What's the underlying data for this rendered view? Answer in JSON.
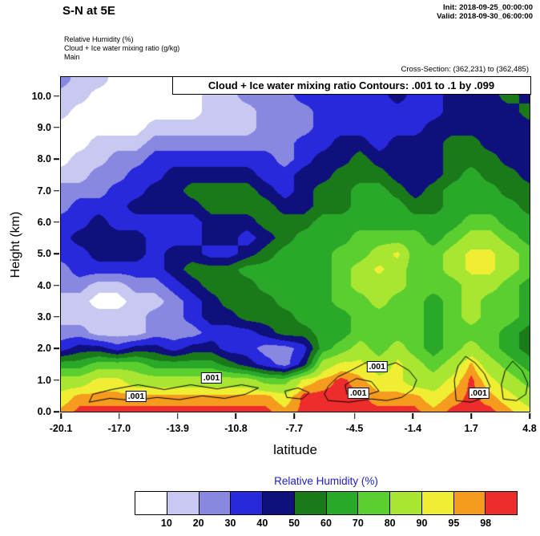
{
  "header": {
    "title": "S-N at 5E",
    "init": "Init: 2018-09-25_00:00:00",
    "valid": "Valid: 2018-09-30_06:00:00",
    "legend_lines": [
      "Relative Humidity  (%)",
      "Cloud + Ice water mixing ratio  (g/kg)",
      "Main"
    ],
    "cross_section": "Cross-Section: (362,231) to (362,485)"
  },
  "chart_data": {
    "type": "heatmap",
    "title": "Cloud + Ice water mixing ratio Contours: .001 to .1 by .099",
    "xlabel": "latitude",
    "ylabel": "Height (km)",
    "xlim": [
      -20.1,
      4.8
    ],
    "ylim": [
      0,
      10.6
    ],
    "x_ticks": [
      -20.1,
      -17.0,
      -13.9,
      -10.8,
      -7.7,
      -4.5,
      -1.4,
      1.7,
      4.8
    ],
    "x_tick_labels": [
      "-20.1",
      "-17.0",
      "-13.9",
      "-10.8",
      "-7.7",
      "-4.5",
      "-1.4",
      "1.7",
      "4.8"
    ],
    "y_ticks": [
      0,
      1,
      2,
      3,
      4,
      5,
      6,
      7,
      8,
      9,
      10
    ],
    "y_tick_labels": [
      "0.0",
      "1.0",
      "2.0",
      "3.0",
      "4.0",
      "5.0",
      "6.0",
      "7.0",
      "8.0",
      "9.0",
      "10.0"
    ],
    "rh_levels": [
      10,
      20,
      30,
      40,
      50,
      60,
      70,
      80,
      90,
      95,
      98
    ],
    "rh_colors": [
      "#ffffff",
      "#c8c8f0",
      "#8888e0",
      "#2828dc",
      "#10107d",
      "#1a7a1a",
      "#2aa82a",
      "#5ccf30",
      "#a8e632",
      "#f0ee33",
      "#f59b1e",
      "#ee2c2c"
    ],
    "grid": {
      "lats": [
        -20.1,
        -19.1,
        -18.1,
        -17.1,
        -16.1,
        -15.1,
        -14.1,
        -13.1,
        -12.1,
        -11.2,
        -10.2,
        -9.2,
        -8.2,
        -7.2,
        -6.2,
        -5.2,
        -4.2,
        -3.2,
        -2.2,
        -1.3,
        -0.3,
        0.7,
        1.7,
        2.7,
        3.7,
        4.8
      ],
      "heights_km": [
        0,
        0.5,
        1,
        1.5,
        2,
        2.5,
        3,
        3.5,
        4,
        4.5,
        5,
        5.5,
        6,
        6.5,
        7,
        7.5,
        8,
        8.5,
        9,
        9.5,
        10,
        10.5
      ],
      "rh_values": [
        [
          96,
          99,
          99,
          99,
          99,
          99,
          99,
          99,
          99,
          99,
          99,
          99,
          96,
          99,
          99,
          99,
          99,
          99,
          99,
          99,
          96,
          99,
          99,
          99,
          96,
          92
        ],
        [
          92,
          96,
          96,
          96,
          96,
          96,
          96,
          96,
          96,
          96,
          96,
          96,
          92,
          99,
          99,
          99,
          99,
          96,
          96,
          96,
          92,
          96,
          99,
          96,
          92,
          85
        ],
        [
          85,
          85,
          92,
          92,
          85,
          85,
          85,
          85,
          85,
          85,
          85,
          75,
          75,
          92,
          96,
          99,
          96,
          92,
          92,
          85,
          85,
          92,
          99,
          92,
          85,
          75
        ],
        [
          65,
          65,
          75,
          75,
          75,
          65,
          65,
          65,
          65,
          55,
          45,
          35,
          25,
          45,
          85,
          92,
          92,
          85,
          92,
          85,
          75,
          85,
          96,
          85,
          75,
          65
        ],
        [
          35,
          45,
          45,
          35,
          45,
          45,
          35,
          45,
          45,
          35,
          35,
          25,
          25,
          35,
          65,
          75,
          85,
          75,
          85,
          75,
          65,
          75,
          85,
          75,
          65,
          55
        ],
        [
          25,
          25,
          15,
          15,
          15,
          25,
          25,
          25,
          35,
          35,
          35,
          45,
          55,
          55,
          65,
          65,
          75,
          75,
          75,
          75,
          65,
          75,
          75,
          75,
          65,
          55
        ],
        [
          15,
          15,
          15,
          15,
          15,
          25,
          25,
          35,
          45,
          45,
          55,
          55,
          55,
          65,
          65,
          65,
          75,
          75,
          75,
          75,
          65,
          75,
          85,
          75,
          75,
          65
        ],
        [
          15,
          15,
          5,
          5,
          15,
          15,
          25,
          35,
          45,
          55,
          55,
          55,
          65,
          65,
          65,
          75,
          75,
          85,
          75,
          75,
          65,
          75,
          85,
          75,
          75,
          65
        ],
        [
          25,
          25,
          15,
          15,
          25,
          25,
          35,
          45,
          55,
          55,
          55,
          65,
          65,
          65,
          65,
          75,
          85,
          85,
          85,
          75,
          75,
          75,
          85,
          85,
          75,
          65
        ],
        [
          25,
          35,
          35,
          35,
          35,
          35,
          45,
          55,
          55,
          55,
          65,
          65,
          65,
          65,
          65,
          75,
          85,
          92,
          85,
          75,
          75,
          85,
          92,
          92,
          85,
          75
        ],
        [
          35,
          35,
          45,
          45,
          45,
          35,
          45,
          45,
          35,
          35,
          45,
          55,
          65,
          65,
          65,
          75,
          75,
          85,
          92,
          75,
          75,
          85,
          92,
          92,
          85,
          75
        ],
        [
          35,
          45,
          45,
          45,
          45,
          35,
          35,
          35,
          45,
          45,
          35,
          45,
          55,
          65,
          65,
          65,
          75,
          75,
          75,
          75,
          65,
          75,
          85,
          85,
          75,
          65
        ],
        [
          35,
          35,
          45,
          35,
          35,
          35,
          35,
          35,
          45,
          45,
          45,
          55,
          55,
          55,
          65,
          65,
          65,
          65,
          65,
          65,
          65,
          65,
          75,
          75,
          65,
          65
        ],
        [
          25,
          35,
          35,
          35,
          45,
          45,
          45,
          45,
          55,
          55,
          55,
          55,
          45,
          45,
          55,
          55,
          65,
          65,
          65,
          55,
          55,
          65,
          65,
          65,
          65,
          55
        ],
        [
          25,
          25,
          25,
          35,
          35,
          45,
          45,
          55,
          55,
          55,
          55,
          45,
          35,
          45,
          55,
          55,
          65,
          65,
          55,
          45,
          55,
          65,
          65,
          65,
          55,
          55
        ],
        [
          15,
          15,
          25,
          25,
          35,
          35,
          45,
          45,
          45,
          45,
          45,
          35,
          35,
          45,
          45,
          55,
          55,
          55,
          45,
          45,
          45,
          55,
          65,
          55,
          55,
          45
        ],
        [
          5,
          15,
          15,
          25,
          25,
          35,
          35,
          35,
          35,
          35,
          35,
          35,
          25,
          35,
          45,
          45,
          55,
          45,
          45,
          45,
          45,
          55,
          55,
          55,
          45,
          45
        ],
        [
          5,
          5,
          15,
          15,
          15,
          25,
          25,
          25,
          25,
          25,
          25,
          25,
          25,
          35,
          35,
          45,
          45,
          35,
          45,
          45,
          45,
          55,
          55,
          45,
          45,
          45
        ],
        [
          5,
          5,
          5,
          5,
          5,
          15,
          15,
          15,
          15,
          15,
          15,
          25,
          25,
          25,
          35,
          35,
          35,
          35,
          35,
          35,
          45,
          45,
          45,
          45,
          45,
          45
        ],
        [
          15,
          5,
          5,
          5,
          5,
          5,
          5,
          5,
          15,
          15,
          15,
          25,
          25,
          25,
          35,
          35,
          35,
          35,
          35,
          35,
          35,
          45,
          45,
          45,
          45,
          55
        ],
        [
          15,
          15,
          5,
          5,
          5,
          5,
          5,
          5,
          15,
          15,
          25,
          25,
          25,
          35,
          35,
          35,
          35,
          35,
          45,
          35,
          35,
          45,
          45,
          45,
          55,
          45
        ],
        [
          25,
          15,
          15,
          5,
          5,
          5,
          5,
          15,
          15,
          25,
          25,
          25,
          35,
          35,
          35,
          35,
          35,
          45,
          45,
          45,
          35,
          45,
          45,
          55,
          45,
          45
        ]
      ]
    },
    "cloud_contours": {
      "level_label": ".001",
      "contour_range": {
        "start": 0.001,
        "end": 0.1,
        "step": 0.099
      },
      "labels": [
        {
          "lat": -16.1,
          "km": 0.48
        },
        {
          "lat": -12.1,
          "km": 1.07
        },
        {
          "lat": -4.3,
          "km": 0.58
        },
        {
          "lat": -3.3,
          "km": 1.42
        },
        {
          "lat": 2.1,
          "km": 0.58
        }
      ],
      "polylines": [
        [
          [
            -18.6,
            0.3
          ],
          [
            -17.5,
            0.42
          ],
          [
            -16.2,
            0.35
          ],
          [
            -15.0,
            0.45
          ],
          [
            -13.8,
            0.38
          ],
          [
            -12.6,
            0.5
          ],
          [
            -11.4,
            0.42
          ],
          [
            -10.3,
            0.55
          ],
          [
            -9.6,
            0.75
          ],
          [
            -10.5,
            0.85
          ],
          [
            -11.8,
            0.72
          ],
          [
            -13.2,
            0.85
          ],
          [
            -14.6,
            0.7
          ],
          [
            -16.0,
            0.85
          ],
          [
            -17.4,
            0.7
          ],
          [
            -18.4,
            0.55
          ],
          [
            -18.6,
            0.3
          ]
        ],
        [
          [
            -8.1,
            0.45
          ],
          [
            -7.3,
            0.4
          ],
          [
            -6.9,
            0.6
          ],
          [
            -7.5,
            0.75
          ],
          [
            -8.2,
            0.65
          ],
          [
            -8.1,
            0.45
          ]
        ],
        [
          [
            -5.9,
            0.35
          ],
          [
            -4.8,
            0.3
          ],
          [
            -3.6,
            0.4
          ],
          [
            -2.8,
            0.35
          ],
          [
            -2.0,
            0.45
          ],
          [
            -1.4,
            0.7
          ],
          [
            -1.2,
            1.0
          ],
          [
            -1.6,
            1.3
          ],
          [
            -2.3,
            1.55
          ],
          [
            -3.1,
            1.4
          ],
          [
            -3.9,
            1.55
          ],
          [
            -4.7,
            1.3
          ],
          [
            -5.4,
            1.1
          ],
          [
            -5.9,
            0.8
          ],
          [
            -6.1,
            0.55
          ],
          [
            -5.9,
            0.35
          ]
        ],
        [
          [
            -4.9,
            0.55
          ],
          [
            -4.0,
            0.5
          ],
          [
            -3.2,
            0.65
          ],
          [
            -3.6,
            0.95
          ],
          [
            -4.4,
            1.05
          ],
          [
            -5.0,
            0.85
          ],
          [
            -4.9,
            0.55
          ]
        ],
        [
          [
            0.9,
            0.35
          ],
          [
            1.7,
            0.3
          ],
          [
            2.4,
            0.45
          ],
          [
            2.7,
            0.8
          ],
          [
            2.4,
            1.2
          ],
          [
            1.9,
            1.55
          ],
          [
            1.4,
            1.75
          ],
          [
            1.0,
            1.45
          ],
          [
            0.8,
            1.0
          ],
          [
            0.9,
            0.35
          ]
        ],
        [
          [
            3.4,
            0.4
          ],
          [
            4.1,
            0.35
          ],
          [
            4.6,
            0.55
          ],
          [
            4.7,
            0.9
          ],
          [
            4.4,
            1.3
          ],
          [
            3.9,
            1.6
          ],
          [
            3.5,
            1.3
          ],
          [
            3.3,
            0.85
          ],
          [
            3.4,
            0.4
          ]
        ]
      ]
    }
  },
  "colorbar": {
    "title": "Relative Humidity  (%)",
    "tick_labels": [
      "10",
      "20",
      "30",
      "40",
      "50",
      "60",
      "70",
      "80",
      "90",
      "95",
      "98"
    ],
    "colors": [
      "#ffffff",
      "#c8c8f0",
      "#8888e0",
      "#2828dc",
      "#10107d",
      "#1a7a1a",
      "#2aa82a",
      "#5ccf30",
      "#a8e632",
      "#f0ee33",
      "#f59b1e",
      "#ee2c2c"
    ]
  }
}
